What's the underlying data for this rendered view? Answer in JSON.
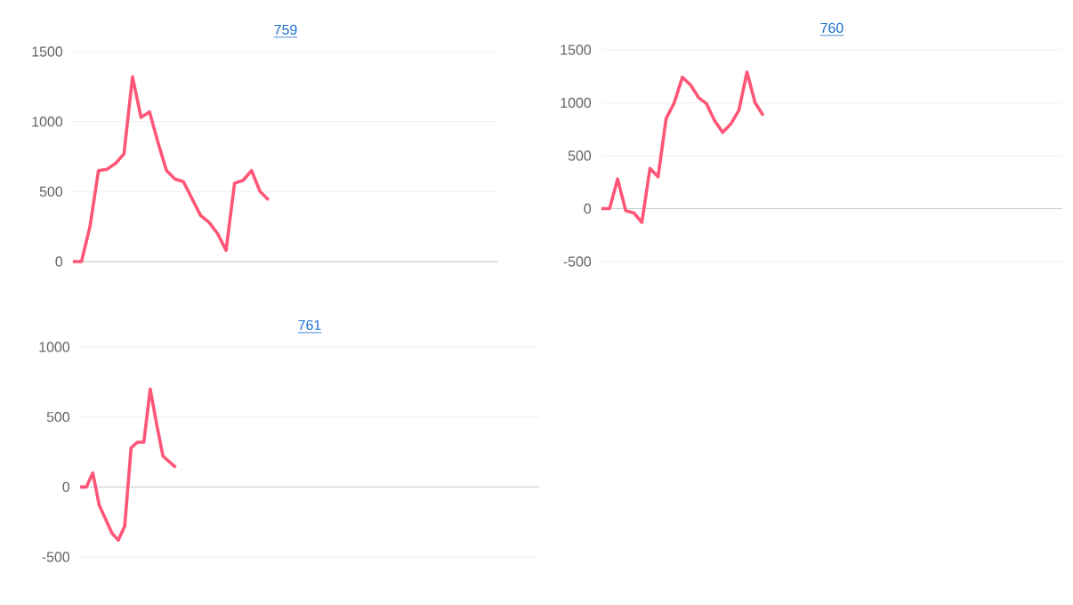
{
  "chart_data": [
    {
      "type": "line",
      "title": "759",
      "color": "#ff5577",
      "grid": "y",
      "tick_labels": "y",
      "ylim": [
        0,
        1500
      ],
      "yticks": [
        0,
        500,
        1000,
        1500
      ],
      "categories": [
        null,
        null,
        null,
        null,
        null,
        null,
        null,
        null,
        null,
        null,
        null,
        null,
        null,
        null,
        null,
        null,
        null,
        null,
        null,
        null,
        null,
        null,
        null,
        null,
        null,
        null,
        null,
        null,
        null,
        null,
        null,
        null,
        null,
        null,
        null,
        null,
        null,
        null,
        null,
        null,
        null,
        null,
        null,
        null,
        null,
        null,
        null,
        null,
        null,
        null,
        null
      ],
      "values": [
        0,
        0,
        250,
        650,
        660,
        700,
        770,
        1320,
        1030,
        1070,
        850,
        650,
        590,
        570,
        450,
        330,
        280,
        200,
        80,
        560,
        580,
        650,
        500,
        440,
        null,
        null,
        null,
        null,
        null,
        null,
        null,
        null,
        null,
        null,
        null,
        null,
        null,
        null,
        null,
        null,
        null,
        null,
        null,
        null,
        null,
        null,
        null,
        null,
        null,
        null,
        null
      ]
    },
    {
      "type": "line",
      "title": "760",
      "color": "#ff5577",
      "grid": "y",
      "tick_labels": "y",
      "ylim": [
        -500,
        1500
      ],
      "yticks": [
        -500,
        0,
        500,
        1000,
        1500
      ],
      "categories": [
        null,
        null,
        null,
        null,
        null,
        null,
        null,
        null,
        null,
        null,
        null,
        null,
        null,
        null,
        null,
        null,
        null,
        null,
        null,
        null,
        null,
        null,
        null,
        null,
        null,
        null,
        null,
        null,
        null,
        null,
        null,
        null,
        null,
        null,
        null,
        null,
        null,
        null,
        null,
        null,
        null,
        null,
        null,
        null,
        null,
        null,
        null,
        null,
        null,
        null,
        null,
        null,
        null,
        null,
        null,
        null,
        null,
        null
      ],
      "values": [
        0,
        0,
        280,
        -20,
        -40,
        -130,
        380,
        300,
        850,
        1000,
        1240,
        1170,
        1050,
        990,
        830,
        720,
        800,
        930,
        1290,
        1000,
        880,
        null,
        null,
        null,
        null,
        null,
        null,
        null,
        null,
        null,
        null,
        null,
        null,
        null,
        null,
        null,
        null,
        null,
        null,
        null,
        null,
        null,
        null,
        null,
        null,
        null,
        null,
        null,
        null,
        null,
        null,
        null,
        null,
        null,
        null,
        null,
        null,
        null
      ]
    },
    {
      "type": "line",
      "title": "761",
      "color": "#ff5577",
      "grid": "y",
      "tick_labels": "y",
      "ylim": [
        -500,
        1000
      ],
      "yticks": [
        -500,
        0,
        500,
        1000
      ],
      "categories": [
        null,
        null,
        null,
        null,
        null,
        null,
        null,
        null,
        null,
        null,
        null,
        null,
        null,
        null,
        null,
        null,
        null,
        null,
        null,
        null,
        null,
        null,
        null,
        null,
        null,
        null,
        null,
        null,
        null,
        null,
        null,
        null,
        null,
        null,
        null,
        null,
        null,
        null,
        null,
        null,
        null,
        null,
        null,
        null,
        null,
        null,
        null,
        null,
        null,
        null,
        null,
        null,
        null,
        null,
        null,
        null,
        null,
        null,
        null,
        null,
        null,
        null,
        null,
        null,
        null,
        null,
        null,
        null,
        null,
        null,
        null,
        null,
        null
      ],
      "values": [
        0,
        0,
        100,
        -130,
        -230,
        -330,
        -380,
        -280,
        280,
        320,
        320,
        700,
        450,
        220,
        180,
        140,
        null,
        null,
        null,
        null,
        null,
        null,
        null,
        null,
        null,
        null,
        null,
        null,
        null,
        null,
        null,
        null,
        null,
        null,
        null,
        null,
        null,
        null,
        null,
        null,
        null,
        null,
        null,
        null,
        null,
        null,
        null,
        null,
        null,
        null,
        null,
        null,
        null,
        null,
        null,
        null,
        null,
        null,
        null,
        null,
        null,
        null,
        null,
        null,
        null,
        null,
        null,
        null,
        null,
        null,
        null,
        null,
        null
      ]
    }
  ]
}
